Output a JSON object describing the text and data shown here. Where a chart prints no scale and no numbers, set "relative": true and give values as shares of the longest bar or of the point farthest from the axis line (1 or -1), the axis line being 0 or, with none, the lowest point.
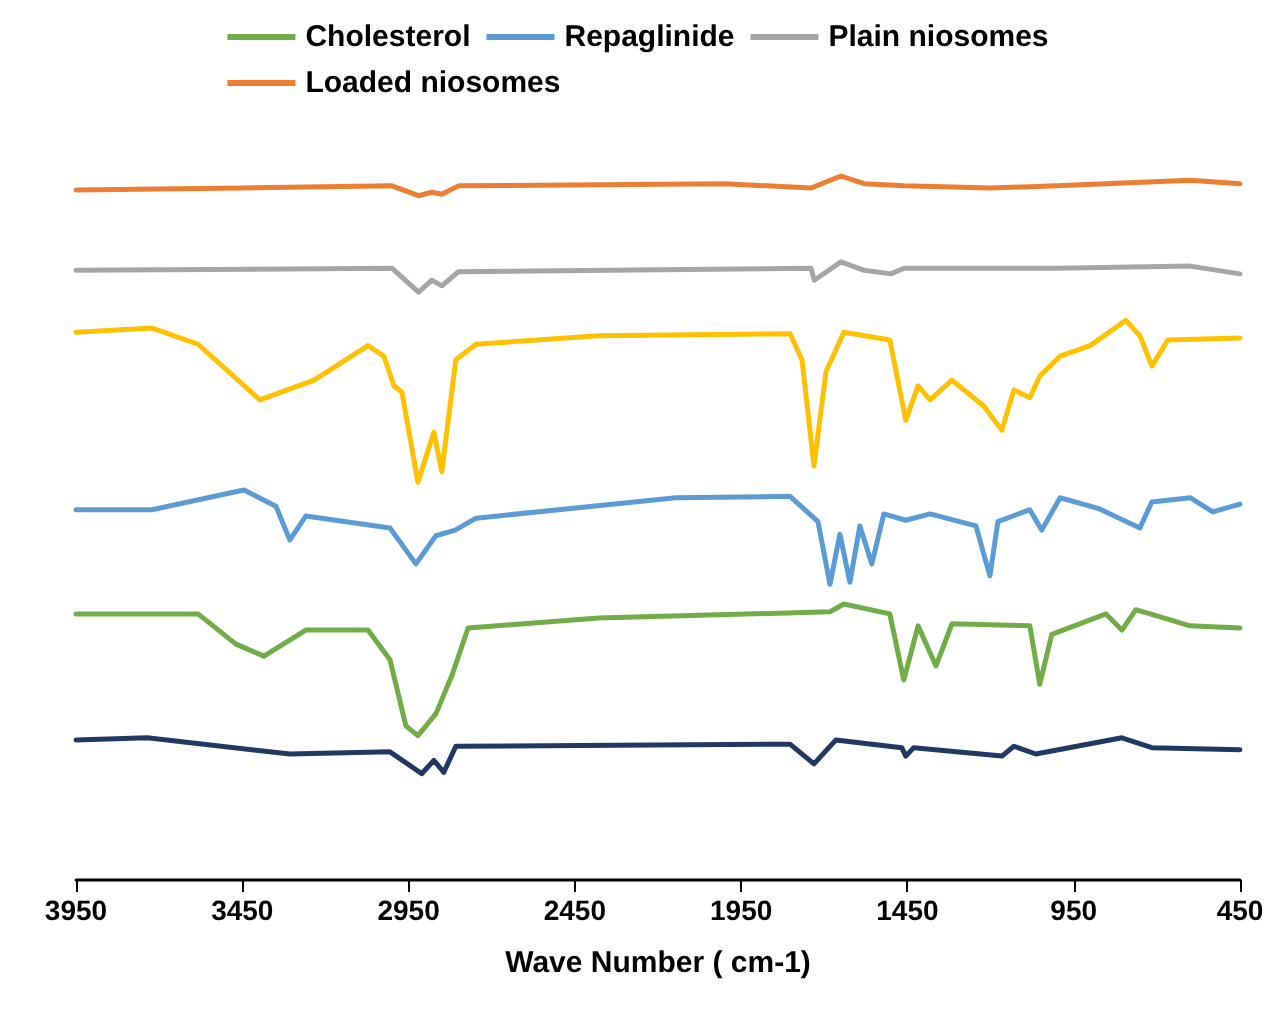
{
  "chart_data": {
    "type": "line",
    "relative": true,
    "xlabel": "Wave Number ( cm-1)",
    "xlim": [
      3950,
      450
    ],
    "xticks": [
      3950,
      3450,
      2950,
      2450,
      1950,
      1450,
      950,
      450
    ],
    "grid": false,
    "legend": "top",
    "marker": "none",
    "series": [
      {
        "color": "#203864",
        "x": [
          3950,
          3736,
          3307,
          3006,
          2910,
          2874,
          2844,
          2808,
          1803,
          1731,
          1665,
          1467,
          1455,
          1431,
          1166,
          1130,
          1064,
          805,
          715,
          450
        ],
        "values": [
          0.199,
          0.202,
          0.179,
          0.182,
          0.151,
          0.17,
          0.153,
          0.19,
          0.193,
          0.165,
          0.199,
          0.188,
          0.176,
          0.188,
          0.176,
          0.19,
          0.179,
          0.202,
          0.188,
          0.185
        ]
      },
      {
        "name": "Cholesterol",
        "color": "#70ad47",
        "x": [
          3950,
          3583,
          3469,
          3385,
          3259,
          3072,
          3006,
          2958,
          2922,
          2868,
          2820,
          2771,
          2380,
          1683,
          1641,
          1503,
          1461,
          1418,
          1364,
          1316,
          1082,
          1052,
          1016,
          853,
          805,
          763,
          600,
          450
        ],
        "values": [
          0.378,
          0.378,
          0.335,
          0.318,
          0.355,
          0.355,
          0.313,
          0.219,
          0.205,
          0.236,
          0.29,
          0.358,
          0.372,
          0.381,
          0.392,
          0.378,
          0.284,
          0.361,
          0.304,
          0.364,
          0.361,
          0.278,
          0.349,
          0.378,
          0.355,
          0.384,
          0.361,
          0.358
        ]
      },
      {
        "name": "Repaglinide",
        "color": "#5b9bd5",
        "x": [
          3950,
          3721,
          3445,
          3349,
          3307,
          3259,
          3006,
          2928,
          2868,
          2810,
          2747,
          2146,
          1803,
          1719,
          1683,
          1653,
          1623,
          1593,
          1557,
          1521,
          1455,
          1382,
          1244,
          1202,
          1178,
          1082,
          1046,
          991,
          877,
          751,
          715,
          600,
          532,
          450
        ],
        "values": [
          0.526,
          0.526,
          0.554,
          0.531,
          0.483,
          0.517,
          0.5,
          0.449,
          0.489,
          0.497,
          0.514,
          0.543,
          0.545,
          0.509,
          0.42,
          0.491,
          0.423,
          0.503,
          0.449,
          0.52,
          0.511,
          0.52,
          0.503,
          0.432,
          0.509,
          0.526,
          0.497,
          0.543,
          0.528,
          0.5,
          0.537,
          0.543,
          0.523,
          0.534
        ]
      },
      {
        "color": "#ffc000",
        "x": [
          3950,
          3721,
          3583,
          3397,
          3234,
          3072,
          3024,
          2994,
          2970,
          2922,
          2874,
          2850,
          2808,
          2747,
          2380,
          1803,
          1767,
          1731,
          1695,
          1641,
          1503,
          1455,
          1418,
          1382,
          1316,
          1220,
          1166,
          1130,
          1082,
          1052,
          991,
          901,
          793,
          751,
          715,
          667,
          450
        ],
        "values": [
          0.778,
          0.784,
          0.761,
          0.682,
          0.71,
          0.759,
          0.744,
          0.702,
          0.693,
          0.565,
          0.636,
          0.58,
          0.739,
          0.761,
          0.773,
          0.776,
          0.739,
          0.588,
          0.722,
          0.778,
          0.767,
          0.653,
          0.702,
          0.682,
          0.71,
          0.673,
          0.639,
          0.696,
          0.685,
          0.716,
          0.744,
          0.759,
          0.795,
          0.773,
          0.73,
          0.767,
          0.77
        ]
      },
      {
        "name": "Plain niosomes",
        "color": "#a5a5a5",
        "x": [
          3950,
          3000,
          2920,
          2880,
          2850,
          2800,
          1740,
          1730,
          1650,
          1580,
          1500,
          1460,
          1000,
          600,
          450
        ],
        "values": [
          0.866,
          0.869,
          0.835,
          0.852,
          0.844,
          0.864,
          0.869,
          0.852,
          0.878,
          0.866,
          0.861,
          0.869,
          0.869,
          0.872,
          0.861
        ]
      },
      {
        "name": "Loaded niosomes",
        "color": "#ed7d31",
        "x": [
          3950,
          3450,
          3000,
          2920,
          2880,
          2850,
          2800,
          2000,
          1740,
          1650,
          1580,
          1460,
          1200,
          1000,
          600,
          450
        ],
        "values": [
          0.98,
          0.983,
          0.986,
          0.972,
          0.977,
          0.974,
          0.986,
          0.989,
          0.983,
          1.0,
          0.989,
          0.986,
          0.983,
          0.986,
          0.994,
          0.989
        ]
      }
    ]
  }
}
